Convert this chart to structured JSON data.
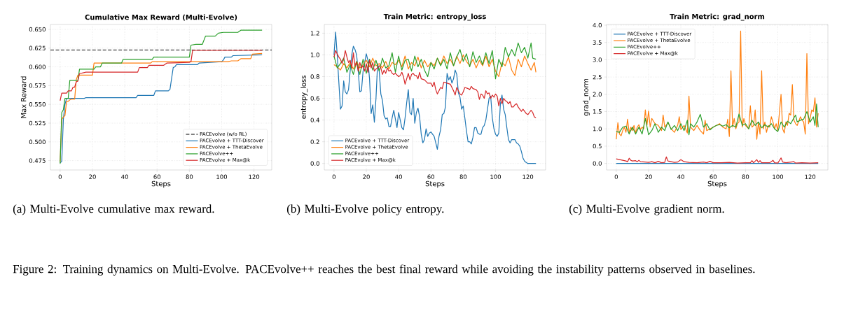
{
  "chart_data": [
    {
      "type": "line",
      "title": "Cumulative Max Reward (Multi-Evolve)",
      "xlabel": "Steps",
      "ylabel": "Max Reward",
      "xlim": [
        -6,
        131
      ],
      "ylim": [
        0.4625,
        0.6565
      ],
      "xticks": [
        0,
        20,
        40,
        60,
        80,
        100,
        120
      ],
      "yticks": [
        0.475,
        {
          "value": 0.5,
          "label": "0.500"
        },
        0.525,
        {
          "value": 0.55,
          "label": "0.550"
        },
        0.575,
        {
          "value": 0.6,
          "label": "0.600"
        },
        0.625,
        {
          "value": 0.65,
          "label": "0.650"
        }
      ],
      "grid": true,
      "legend": "bottom right",
      "ref_lines": [
        {
          "axis": "y",
          "value": 0.6225,
          "label": "PACEvolve (w/o RL)",
          "color": "#000000",
          "line_style": "dashed"
        }
      ],
      "series": [
        {
          "name": "PACEvolve + TTT-Discover",
          "color": "#1f77b4",
          "x": [
            0,
            1,
            2,
            3,
            4,
            15,
            16,
            47,
            48,
            58,
            59,
            67,
            68,
            70,
            71,
            72,
            85,
            86,
            100,
            101,
            102,
            106,
            107,
            125
          ],
          "values": [
            0.472,
            0.474,
            0.53,
            0.55,
            0.558,
            0.558,
            0.559,
            0.559,
            0.562,
            0.562,
            0.568,
            0.568,
            0.57,
            0.599,
            0.6,
            0.603,
            0.603,
            0.605,
            0.607,
            0.609,
            0.613,
            0.613,
            0.615,
            0.616
          ]
        },
        {
          "name": "PACEvolve + ThetaEvolve",
          "color": "#ff7f0e",
          "x": [
            0,
            1,
            2,
            3,
            4,
            5,
            6,
            7,
            9,
            10,
            11,
            20,
            21,
            56,
            57,
            104,
            106,
            110,
            112,
            118,
            119,
            125
          ],
          "values": [
            0.473,
            0.53,
            0.533,
            0.535,
            0.554,
            0.554,
            0.556,
            0.557,
            0.557,
            0.583,
            0.589,
            0.589,
            0.605,
            0.605,
            0.607,
            0.607,
            0.608,
            0.608,
            0.611,
            0.611,
            0.617,
            0.618
          ]
        },
        {
          "name": "PACEvolve++",
          "color": "#2ca02c",
          "x": [
            0,
            1,
            2,
            3,
            5,
            6,
            11,
            12,
            21,
            22,
            25,
            26,
            38,
            39,
            57,
            58,
            80,
            81,
            84,
            88,
            90,
            96,
            98,
            101,
            110,
            112,
            125
          ],
          "values": [
            0.471,
            0.539,
            0.543,
            0.558,
            0.558,
            0.582,
            0.582,
            0.597,
            0.597,
            0.6,
            0.6,
            0.605,
            0.605,
            0.61,
            0.61,
            0.613,
            0.613,
            0.629,
            0.63,
            0.63,
            0.641,
            0.641,
            0.645,
            0.646,
            0.646,
            0.649,
            0.649
          ]
        },
        {
          "name": "PACEvolve + Max@k",
          "color": "#d62728",
          "x": [
            0,
            1,
            4,
            5,
            7,
            8,
            9,
            10,
            11,
            12,
            16,
            48,
            49,
            54,
            55,
            64,
            66,
            80,
            81,
            82,
            125
          ],
          "values": [
            0.555,
            0.565,
            0.565,
            0.568,
            0.568,
            0.573,
            0.573,
            0.58,
            0.581,
            0.591,
            0.593,
            0.593,
            0.599,
            0.599,
            0.602,
            0.602,
            0.605,
            0.606,
            0.607,
            0.622,
            0.622
          ]
        }
      ],
      "annotations": [
        "(a) Multi-Evolve cumulative max reward."
      ]
    },
    {
      "type": "line",
      "title": "Train Metric: entropy_loss",
      "xlabel": "Steps",
      "ylabel": "entropy_loss",
      "xlim": [
        -6,
        131
      ],
      "ylim": [
        -0.06,
        1.28
      ],
      "xticks": [
        0,
        20,
        40,
        60,
        80,
        100,
        120
      ],
      "yticks": [
        {
          "value": 0,
          "label": "0.0"
        },
        0.2,
        0.4,
        0.6,
        0.8,
        {
          "value": 1,
          "label": "1.0"
        },
        1.2
      ],
      "grid": true,
      "legend": "bottom left",
      "series": [
        {
          "name": "PACEvolve + TTT-Discover",
          "color": "#1f77b4",
          "x": [
            0,
            1,
            2,
            3,
            4,
            5,
            6,
            7,
            8,
            9,
            10,
            11,
            12,
            13,
            14,
            15,
            16,
            17,
            18,
            19,
            20,
            21,
            22,
            23,
            24,
            25,
            26,
            27,
            28,
            29,
            30,
            31,
            32,
            33,
            34,
            35,
            36,
            37,
            38,
            39,
            40,
            41,
            42,
            43,
            44,
            45,
            46,
            47,
            48,
            49,
            50,
            51,
            52,
            53,
            54,
            55,
            56,
            57,
            58,
            59,
            60,
            62,
            63,
            64,
            65,
            66,
            67,
            68,
            69,
            70,
            71,
            72,
            73,
            74,
            75,
            76,
            77,
            78,
            79,
            80,
            81,
            82,
            83,
            84,
            85,
            86,
            87,
            88,
            89,
            90,
            91,
            92,
            93,
            94,
            95,
            96,
            97,
            98,
            99,
            100,
            101,
            102,
            103,
            104,
            105,
            106,
            107,
            108,
            109,
            110,
            111,
            112,
            113,
            114,
            115,
            116,
            117,
            118,
            119,
            120,
            125
          ],
          "values": [
            1.0,
            1.21,
            1.0,
            0.75,
            0.5,
            0.53,
            0.76,
            0.66,
            0.64,
            0.68,
            0.85,
            1.0,
            1.08,
            1.05,
            1.0,
            0.85,
            0.66,
            0.67,
            0.85,
            0.93,
            1.01,
            0.95,
            0.78,
            0.46,
            0.54,
            0.38,
            0.6,
            0.92,
            0.85,
            0.64,
            0.58,
            0.44,
            0.41,
            0.42,
            0.34,
            0.34,
            0.42,
            0.49,
            0.41,
            0.33,
            0.47,
            0.4,
            0.33,
            0.31,
            0.42,
            0.56,
            0.68,
            0.47,
            0.45,
            0.6,
            0.37,
            0.47,
            0.51,
            0.43,
            0.27,
            0.19,
            0.22,
            0.32,
            0.25,
            0.28,
            0.29,
            0.25,
            0.19,
            0.13,
            0.25,
            0.31,
            0.45,
            0.46,
            0.52,
            0.83,
            0.77,
            0.8,
            0.74,
            0.78,
            0.86,
            0.82,
            0.65,
            0.61,
            0.5,
            0.53,
            0.42,
            0.3,
            0.2,
            0.2,
            0.18,
            0.24,
            0.33,
            0.33,
            0.28,
            0.27,
            0.27,
            0.33,
            0.35,
            0.4,
            0.5,
            0.6,
            0.62,
            0.42,
            0.32,
            0.27,
            0.25,
            0.28,
            0.55,
            0.63,
            0.5,
            0.45,
            0.33,
            0.22,
            0.19,
            0.22,
            0.22,
            0.22,
            0.19,
            0.18,
            0.16,
            0.11,
            0.05,
            0.02,
            0.01,
            0.0,
            0.0
          ]
        },
        {
          "name": "PACEvolve + ThetaEvolve",
          "color": "#ff7f0e",
          "x": [
            0,
            2,
            4,
            6,
            8,
            10,
            12,
            14,
            16,
            18,
            20,
            22,
            24,
            26,
            28,
            30,
            32,
            34,
            36,
            38,
            40,
            42,
            44,
            46,
            48,
            50,
            52,
            54,
            56,
            58,
            60,
            62,
            64,
            66,
            68,
            70,
            72,
            74,
            76,
            78,
            80,
            82,
            84,
            86,
            88,
            90,
            92,
            94,
            96,
            98,
            100,
            102,
            104,
            106,
            108,
            110,
            112,
            114,
            116,
            118,
            120,
            122,
            124,
            125
          ],
          "values": [
            0.91,
            0.89,
            0.86,
            0.92,
            0.88,
            0.93,
            0.87,
            0.94,
            0.88,
            0.91,
            0.95,
            0.89,
            0.97,
            0.9,
            0.92,
            0.88,
            0.94,
            0.87,
            0.93,
            0.91,
            0.95,
            0.89,
            0.99,
            0.87,
            0.93,
            0.9,
            0.98,
            0.88,
            0.95,
            0.89,
            0.93,
            0.9,
            0.97,
            0.91,
            0.99,
            0.92,
            0.96,
            0.9,
            0.99,
            0.92,
            1.0,
            0.94,
            0.9,
            0.96,
            0.88,
            0.95,
            0.9,
            0.99,
            0.89,
            0.96,
            0.85,
            0.8,
            0.93,
            0.9,
            0.98,
            0.86,
            0.81,
            0.96,
            0.89,
            0.99,
            0.92,
            0.86,
            0.93,
            0.84
          ]
        },
        {
          "name": "PACEvolve++",
          "color": "#2ca02c",
          "x": [
            0,
            2,
            4,
            6,
            8,
            10,
            12,
            14,
            16,
            18,
            20,
            22,
            24,
            26,
            28,
            30,
            32,
            34,
            36,
            38,
            40,
            42,
            44,
            46,
            48,
            50,
            52,
            54,
            56,
            58,
            60,
            62,
            64,
            66,
            68,
            70,
            72,
            74,
            76,
            78,
            80,
            82,
            84,
            86,
            88,
            90,
            92,
            94,
            96,
            98,
            100,
            102,
            104,
            106,
            108,
            110,
            112,
            114,
            116,
            118,
            120,
            122,
            123,
            125
          ],
          "values": [
            0.99,
            0.88,
            0.92,
            0.97,
            0.84,
            0.91,
            0.82,
            0.94,
            0.82,
            0.96,
            0.83,
            0.96,
            0.86,
            0.95,
            0.85,
            0.97,
            0.88,
            0.9,
            1.02,
            0.84,
            0.99,
            0.86,
            0.95,
            0.96,
            0.85,
            0.99,
            0.89,
            0.96,
            0.86,
            0.8,
            0.93,
            0.87,
            0.97,
            0.9,
            0.96,
            0.87,
            1.02,
            0.9,
            0.98,
            1.05,
            0.94,
            1.01,
            0.89,
            1.03,
            0.93,
            0.99,
            0.91,
            1.02,
            0.92,
            1.04,
            0.78,
            0.96,
            0.89,
            1.07,
            0.98,
            1.05,
            0.99,
            1.11,
            1.02,
            1.07,
            0.97,
            1.11,
            0.97,
            0.96
          ]
        },
        {
          "name": "PACEvolve + Max@k",
          "color": "#d62728",
          "x": [
            0,
            1,
            2,
            3,
            4,
            5,
            6,
            7,
            8,
            9,
            10,
            11,
            12,
            13,
            14,
            15,
            16,
            17,
            18,
            19,
            20,
            21,
            22,
            23,
            24,
            25,
            26,
            27,
            28,
            29,
            30,
            31,
            32,
            33,
            34,
            35,
            36,
            37,
            38,
            40,
            41,
            42,
            43,
            44,
            45,
            46,
            47,
            48,
            49,
            50,
            51,
            52,
            53,
            54,
            56,
            58,
            60,
            61,
            62,
            63,
            64,
            65,
            66,
            67,
            68,
            70,
            72,
            73,
            74,
            75,
            76,
            77,
            78,
            79,
            80,
            81,
            83,
            84,
            85,
            86,
            88,
            89,
            90,
            91,
            92,
            93,
            94,
            95,
            96,
            97,
            98,
            99,
            100,
            101,
            102,
            103,
            104,
            105,
            106,
            107,
            108,
            109,
            110,
            111,
            112,
            113,
            114,
            115,
            116,
            117,
            118,
            119,
            120,
            121,
            122,
            123,
            124,
            125
          ],
          "values": [
            0.98,
            1.04,
            1.01,
            0.98,
            0.96,
            0.92,
            0.96,
            1.04,
            0.98,
            0.93,
            0.95,
            0.88,
            1.02,
            0.9,
            0.93,
            0.85,
            0.93,
            0.88,
            0.9,
            0.85,
            0.92,
            0.84,
            0.95,
            0.88,
            0.93,
            0.85,
            0.87,
            0.88,
            0.9,
            0.88,
            0.82,
            0.86,
            0.83,
            0.88,
            0.85,
            0.86,
            0.83,
            0.82,
            0.83,
            0.8,
            0.81,
            0.84,
            0.8,
            0.73,
            0.78,
            0.83,
            0.77,
            0.82,
            0.83,
            0.81,
            0.81,
            0.78,
            0.84,
            0.78,
            0.77,
            0.74,
            0.74,
            0.71,
            0.75,
            0.68,
            0.64,
            0.67,
            0.7,
            0.69,
            0.75,
            0.74,
            0.73,
            0.7,
            0.67,
            0.63,
            0.7,
            0.67,
            0.64,
            0.63,
            0.66,
            0.7,
            0.69,
            0.68,
            0.71,
            0.69,
            0.68,
            0.66,
            0.59,
            0.64,
            0.63,
            0.6,
            0.67,
            0.64,
            0.65,
            0.6,
            0.63,
            0.61,
            0.64,
            0.62,
            0.53,
            0.6,
            0.55,
            0.6,
            0.58,
            0.57,
            0.55,
            0.57,
            0.52,
            0.52,
            0.54,
            0.55,
            0.52,
            0.5,
            0.48,
            0.5,
            0.48,
            0.46,
            0.45,
            0.47,
            0.49,
            0.47,
            0.43,
            0.42
          ]
        }
      ],
      "annotations": [
        "(b) Multi-Evolve policy entropy."
      ]
    },
    {
      "type": "line",
      "title": "Train Metric: grad_norm",
      "xlabel": "Steps",
      "ylabel": "grad_norm",
      "xlim": [
        -6,
        131
      ],
      "ylim": [
        -0.19,
        4.02
      ],
      "xticks": [
        0,
        20,
        40,
        60,
        80,
        100,
        120
      ],
      "yticks": [
        {
          "value": 0,
          "label": "0.0"
        },
        0.5,
        {
          "value": 1,
          "label": "1.0"
        },
        1.5,
        {
          "value": 2,
          "label": "2.0"
        },
        2.5,
        {
          "value": 3,
          "label": "3.0"
        },
        3.5,
        {
          "value": 4,
          "label": "4.0"
        }
      ],
      "grid": true,
      "legend": "top left",
      "series": [
        {
          "name": "PACEvolve + TTT-Discover",
          "color": "#1f77b4",
          "x": [
            0,
            125
          ],
          "values": [
            0,
            0
          ]
        },
        {
          "name": "PACEvolve + ThetaEvolve",
          "color": "#ff7f0e",
          "x": [
            0,
            1,
            2,
            3,
            4,
            5,
            6,
            7,
            8,
            9,
            10,
            11,
            12,
            13,
            14,
            15,
            16,
            17,
            18,
            19,
            20,
            21,
            22,
            24,
            26,
            28,
            29,
            30,
            32,
            34,
            36,
            38,
            39,
            40,
            42,
            44,
            45,
            46,
            48,
            50,
            52,
            54,
            55,
            56,
            58,
            60,
            62,
            64,
            66,
            68,
            69,
            70,
            71,
            72,
            73,
            74,
            75,
            76,
            77,
            78,
            79,
            80,
            82,
            83,
            84,
            85,
            86,
            87,
            88,
            89,
            90,
            91,
            92,
            93,
            94,
            95,
            96,
            97,
            98,
            99,
            100,
            102,
            103,
            104,
            105,
            106,
            107,
            108,
            109,
            110,
            111,
            112,
            114,
            115,
            116,
            117,
            118,
            119,
            120,
            121,
            122,
            123,
            124,
            125
          ],
          "values": [
            0.7,
            1.18,
            0.85,
            0.8,
            0.95,
            1.05,
            0.9,
            1.28,
            0.88,
            1.05,
            0.95,
            1.1,
            0.88,
            1.05,
            1.12,
            0.98,
            1.05,
            1.0,
            1.55,
            1.1,
            1.52,
            1.05,
            1.3,
            1.15,
            1.1,
            0.95,
            1.4,
            1.05,
            1.18,
            1.0,
            0.9,
            1.1,
            1.35,
            0.98,
            1.1,
            0.88,
            1.95,
            1.05,
            0.95,
            1.1,
            0.95,
            0.85,
            1.25,
            0.95,
            1.0,
            1.05,
            1.1,
            1.15,
            1.05,
            1.0,
            1.28,
            0.78,
            2.68,
            1.05,
            1.3,
            1.0,
            1.15,
            1.2,
            3.83,
            1.05,
            1.3,
            1.1,
            1.0,
            1.67,
            1.05,
            1.1,
            1.55,
            0.7,
            1.2,
            0.85,
            2.68,
            1.0,
            1.2,
            0.9,
            1.1,
            1.05,
            1.35,
            1.2,
            1.0,
            1.15,
            0.95,
            2.0,
            1.0,
            0.88,
            1.2,
            1.1,
            1.45,
            1.4,
            2.28,
            1.25,
            1.15,
            1.1,
            1.35,
            1.25,
            1.2,
            0.85,
            3.18,
            1.15,
            1.3,
            1.55,
            1.5,
            1.9,
            1.05,
            1.45
          ]
        },
        {
          "name": "PACEvolve++",
          "color": "#2ca02c",
          "x": [
            0,
            2,
            4,
            6,
            8,
            10,
            12,
            14,
            16,
            18,
            20,
            22,
            24,
            26,
            28,
            30,
            32,
            34,
            36,
            38,
            40,
            42,
            44,
            45,
            46,
            48,
            50,
            52,
            54,
            56,
            58,
            60,
            62,
            64,
            66,
            68,
            70,
            72,
            74,
            76,
            78,
            80,
            82,
            84,
            86,
            88,
            90,
            92,
            94,
            96,
            98,
            100,
            102,
            104,
            106,
            108,
            110,
            111,
            112,
            114,
            116,
            118,
            120,
            122,
            123,
            124,
            125
          ],
          "values": [
            0.92,
            0.9,
            1.05,
            1.08,
            0.85,
            1.05,
            0.85,
            1.05,
            0.85,
            1.3,
            0.83,
            0.95,
            1.15,
            0.9,
            1.05,
            0.95,
            1.2,
            0.98,
            1.1,
            0.95,
            1.15,
            0.95,
            1.25,
            0.83,
            1.15,
            1.05,
            1.2,
            1.42,
            1.05,
            1.15,
            0.97,
            1.05,
            1.1,
            1.12,
            1.08,
            1.12,
            1.03,
            1.1,
            1.05,
            1.43,
            1.1,
            1.15,
            1.0,
            1.25,
            1.1,
            1.2,
            1.03,
            1.12,
            1.05,
            1.15,
            1.0,
            0.92,
            1.2,
            1.05,
            1.22,
            1.15,
            1.32,
            1.4,
            1.2,
            1.25,
            1.28,
            1.5,
            1.2,
            1.35,
            1.1,
            1.72,
            1.05
          ]
        },
        {
          "name": "PACEvolve + Max@k",
          "color": "#d62728",
          "x": [
            0,
            2,
            4,
            6,
            7,
            8,
            9,
            10,
            12,
            13,
            14,
            15,
            18,
            20,
            22,
            24,
            26,
            28,
            30,
            31,
            32,
            34,
            36,
            38,
            40,
            42,
            45,
            50,
            54,
            56,
            58,
            60,
            65,
            70,
            75,
            80,
            83,
            84,
            85,
            87,
            88,
            89,
            90,
            95,
            97,
            98,
            100,
            102,
            103,
            105,
            110,
            111,
            115,
            120,
            125
          ],
          "values": [
            0.13,
            0.11,
            0.09,
            0.07,
            0.05,
            0.15,
            0.09,
            0.07,
            0.08,
            0.05,
            0.09,
            0.05,
            0.04,
            0.03,
            0.05,
            0.02,
            0.06,
            0.02,
            0.03,
            0.19,
            0.07,
            0.05,
            0.03,
            0.04,
            0.11,
            0.05,
            0.03,
            0.02,
            0.04,
            0.02,
            0.06,
            0.02,
            0.02,
            0.03,
            0.01,
            0.02,
            0.02,
            0.08,
            0.02,
            0.11,
            0.03,
            0.08,
            0.02,
            0.02,
            0.09,
            0.02,
            0.01,
            0.16,
            0.04,
            0.02,
            0.05,
            0.01,
            0.02,
            0.01,
            0.02
          ]
        }
      ],
      "annotations": [
        "(c) Multi-Evolve gradient norm.",
        "Figure 2: Training dynamics on Multi-Evolve. PACEvolve++ reaches the best final reward while avoiding the instability patterns observed in baselines."
      ]
    }
  ]
}
